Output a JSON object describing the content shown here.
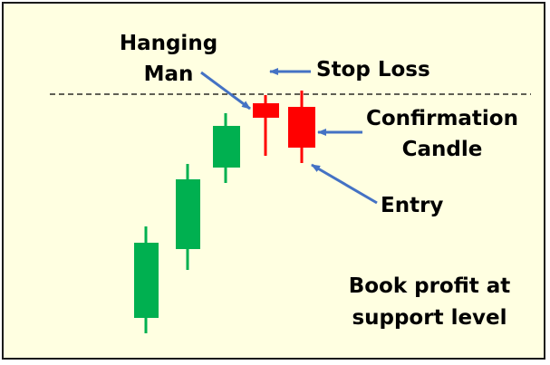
{
  "labels": {
    "hanging_line1": "Hanging",
    "hanging_line2": "Man",
    "stop_loss": "Stop Loss",
    "confirmation_line1": "Confirmation",
    "confirmation_line2": "Candle",
    "entry": "Entry",
    "book_profit_line1": "Book profit at",
    "book_profit_line2": "support level"
  },
  "colors": {
    "background": "#FFFFE1",
    "bullish": "#00B050",
    "bearish": "#FF0000",
    "arrow": "#4472C4",
    "dashed_line": "#000000"
  },
  "icons": {
    "pointer": "arrow-icon"
  }
}
